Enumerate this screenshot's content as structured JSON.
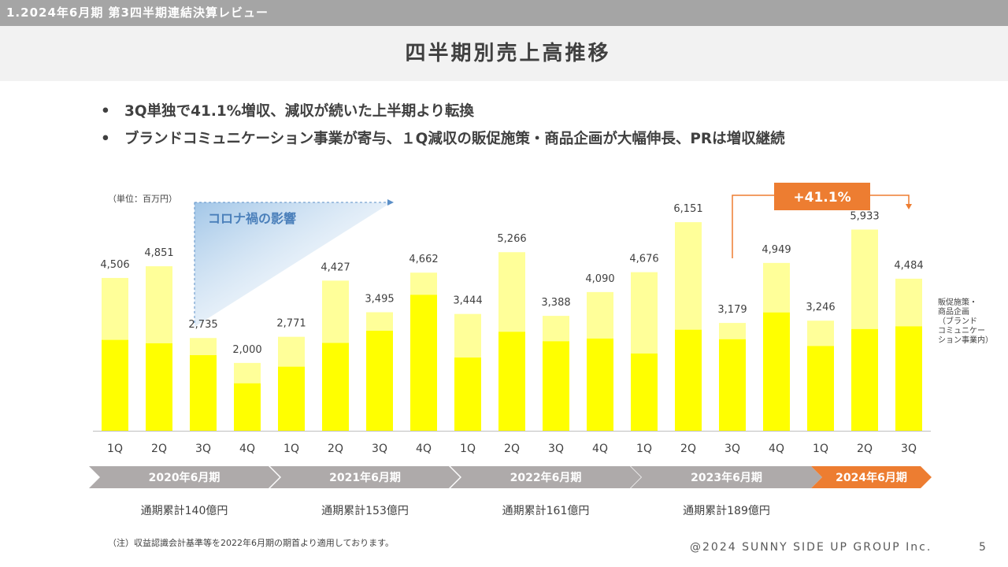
{
  "header": {
    "section": "1.2024年6月期 第3四半期連結決算レビュー",
    "title": "四半期別売上高推移"
  },
  "bullets": [
    "3Q単独で41.1%増収、減収が続いた上半期より転換",
    "ブランドコミュニケーション事業が寄与、１Q減収の販促施策・商品企画が大幅伸長、PRは増収継続"
  ],
  "chart_data": {
    "type": "bar",
    "stacked": true,
    "unit_label": "（単位：百万円）",
    "categories": [
      "1Q",
      "2Q",
      "3Q",
      "4Q",
      "1Q",
      "2Q",
      "3Q",
      "4Q",
      "1Q",
      "2Q",
      "3Q",
      "4Q",
      "1Q",
      "2Q",
      "3Q",
      "4Q",
      "1Q",
      "2Q",
      "3Q"
    ],
    "totals": [
      4506,
      4851,
      2735,
      2000,
      2771,
      4427,
      3495,
      4662,
      3444,
      5266,
      3388,
      4090,
      4676,
      6151,
      3179,
      4949,
      3246,
      5933,
      4484
    ],
    "total_labels": [
      "4,506",
      "4,851",
      "2,735",
      "2,000",
      "2,771",
      "4,427",
      "3,495",
      "4,662",
      "3,444",
      "5,266",
      "3,388",
      "4,090",
      "4,676",
      "6,151",
      "3,179",
      "4,949",
      "3,246",
      "5,933",
      "4,484"
    ],
    "lower_values": [
      2680,
      2580,
      2230,
      1400,
      1890,
      2590,
      2950,
      4010,
      2160,
      2920,
      2640,
      2720,
      2280,
      2980,
      2700,
      3490,
      2500,
      3000,
      3080
    ],
    "ylim": [
      0,
      7000
    ],
    "colors": {
      "lower": "#ffff00",
      "upper": "#ffff99"
    },
    "series_note": "販促施策・\n商品企画\n（ブランド\nコミュニケー\nション事業内）",
    "fiscal_years": [
      {
        "label": "2020年6月期",
        "total": "通期累計140億円"
      },
      {
        "label": "2021年6月期",
        "total": "通期累計153億円"
      },
      {
        "label": "2022年6月期",
        "total": "通期累計161億円"
      },
      {
        "label": "2023年6月期",
        "total": "通期累計189億円"
      },
      {
        "label": "2024年6月期",
        "total": ""
      }
    ],
    "annotations": {
      "covid": "コロナ禍の影響",
      "growth": "+41.1%"
    }
  },
  "footer": {
    "footnote": "（注）収益認識会計基準等を2022年6月期の期首より適用しております。",
    "copyright": "@2024 SUNNY SIDE UP GROUP Inc.",
    "page": "5"
  }
}
